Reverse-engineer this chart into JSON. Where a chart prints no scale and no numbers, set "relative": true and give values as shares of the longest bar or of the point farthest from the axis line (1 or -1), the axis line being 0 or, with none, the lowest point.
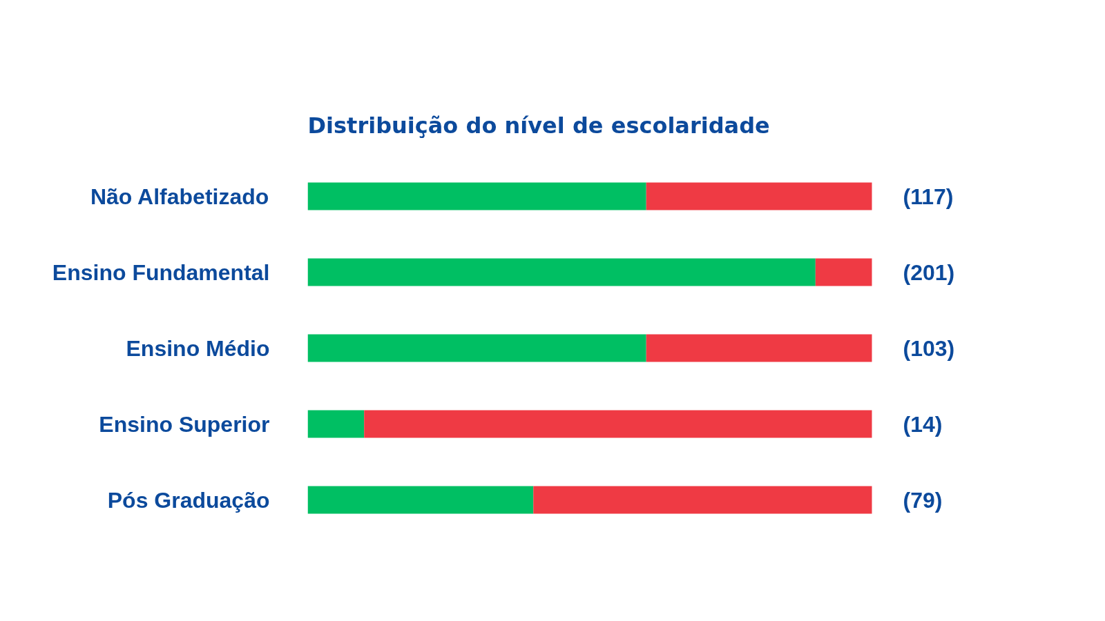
{
  "chart_data": {
    "type": "bar",
    "orientation": "horizontal",
    "stacked": true,
    "relative": true,
    "title": "Distribuição do nível de escolaridade",
    "categories": [
      "Não Alfabetizado",
      "Ensino Fundamental",
      "Ensino Médio",
      "Ensino Superior",
      "Pós Graduação"
    ],
    "series": [
      {
        "color": "#00bf63",
        "values": [
          0.6,
          0.9,
          0.6,
          0.1,
          0.4
        ]
      },
      {
        "color": "#ef3a44",
        "values": [
          0.4,
          0.1,
          0.4,
          0.9,
          0.6
        ]
      }
    ],
    "annotations": [
      "(117)",
      "(201)",
      "(103)",
      "(14)",
      "(79)"
    ]
  }
}
